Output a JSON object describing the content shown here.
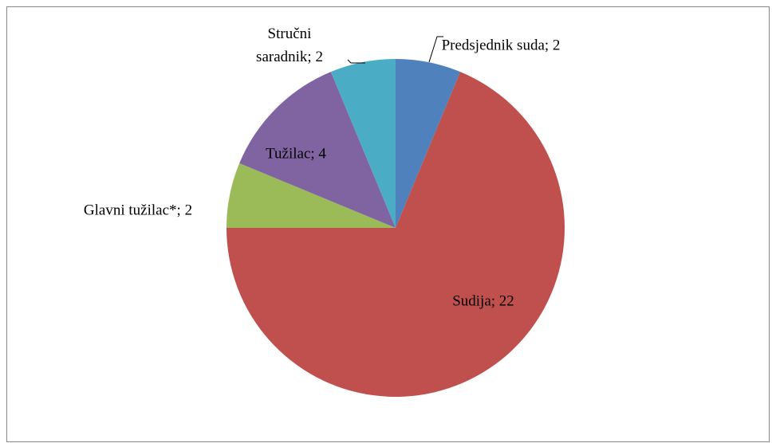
{
  "chart_data": {
    "type": "pie",
    "categories": [
      "Predsjednik suda",
      "Sudija",
      "Glavni tužilac*",
      "Tužilac",
      "Stručni saradnik"
    ],
    "values": [
      2,
      22,
      2,
      4,
      2
    ],
    "colors": [
      "#4f81bd",
      "#c0504d",
      "#9bbb59",
      "#8064a2",
      "#4bacc6"
    ],
    "label_separator": "; "
  }
}
